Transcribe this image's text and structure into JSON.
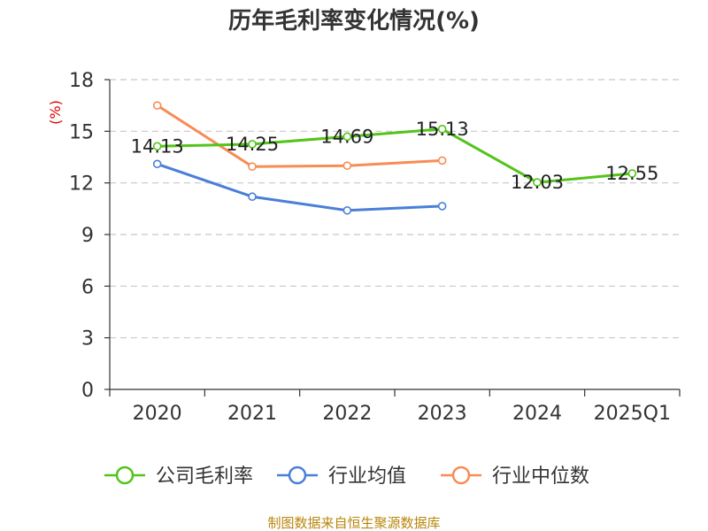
{
  "chart_data": {
    "type": "line",
    "title": "历年毛利率变化情况(%)",
    "ylabel": "(%)",
    "xlabel": "",
    "categories": [
      "2020",
      "2021",
      "2022",
      "2023",
      "2024",
      "2025Q1"
    ],
    "ylim": [
      0,
      18
    ],
    "yticks": [
      0,
      3,
      6,
      9,
      12,
      15,
      18
    ],
    "grid": true,
    "legend_position": "bottom",
    "series": [
      {
        "name": "公司毛利率",
        "color": "#52c41a",
        "values": [
          14.13,
          14.25,
          14.69,
          15.13,
          12.03,
          12.55
        ],
        "data_labels": [
          "14.13",
          "14.25",
          "14.69",
          "15.13",
          "12.03",
          "12.55"
        ]
      },
      {
        "name": "行业均值",
        "color": "#4a7fd8",
        "values": [
          13.1,
          11.2,
          10.4,
          10.65,
          null,
          null
        ]
      },
      {
        "name": "行业中位数",
        "color": "#f78c55",
        "values": [
          16.5,
          12.95,
          13.0,
          13.3,
          null,
          null
        ]
      }
    ]
  },
  "source": "制图数据来自恒生聚源数据库"
}
